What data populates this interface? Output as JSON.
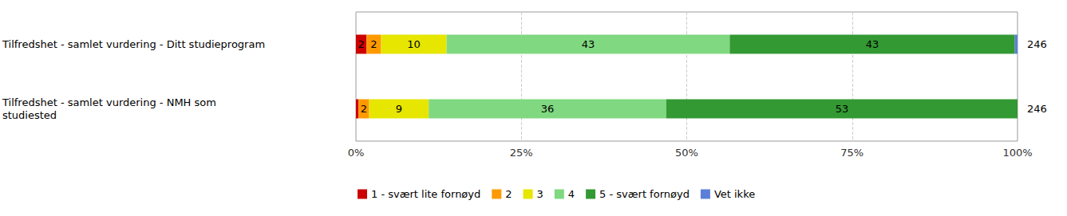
{
  "chart_data": {
    "type": "bar",
    "orientation": "horizontal",
    "stacked": true,
    "data_labels": true,
    "grid": true,
    "legend": "bottom",
    "categories": [
      "Tilfredshet - samlet vurdering - Ditt studieprogram",
      "Tilfredshet - samlet vurdering - NMH som studiested"
    ],
    "counts": [
      246,
      246
    ],
    "xlim": [
      0,
      100
    ],
    "xticks": [
      {
        "value": 0,
        "label": "0%"
      },
      {
        "value": 25,
        "label": "25%"
      },
      {
        "value": 50,
        "label": "50%"
      },
      {
        "value": 75,
        "label": "75%"
      },
      {
        "value": 100,
        "label": "100%"
      }
    ],
    "series": [
      {
        "name": "1 - svært lite fornøyd",
        "color": "#cc0000",
        "values": [
          1.6,
          0.4
        ],
        "value_labels": [
          "2",
          null
        ]
      },
      {
        "name": "2",
        "color": "#ff9900",
        "values": [
          2.2,
          1.6
        ],
        "value_labels": [
          "2",
          "2"
        ]
      },
      {
        "name": "3",
        "color": "#e6e600",
        "values": [
          9.9,
          9.0
        ],
        "value_labels": [
          "10",
          "9"
        ]
      },
      {
        "name": "4",
        "color": "#80d880",
        "values": [
          42.8,
          35.9
        ],
        "value_labels": [
          "43",
          "36"
        ]
      },
      {
        "name": "5 - svært fornøyd",
        "color": "#339933",
        "values": [
          43.1,
          53.1
        ],
        "value_labels": [
          "43",
          "53"
        ]
      },
      {
        "name": "Vet ikke",
        "color": "#5b7fd8",
        "values": [
          0.4,
          0
        ],
        "value_labels": [
          null,
          null
        ]
      }
    ]
  }
}
